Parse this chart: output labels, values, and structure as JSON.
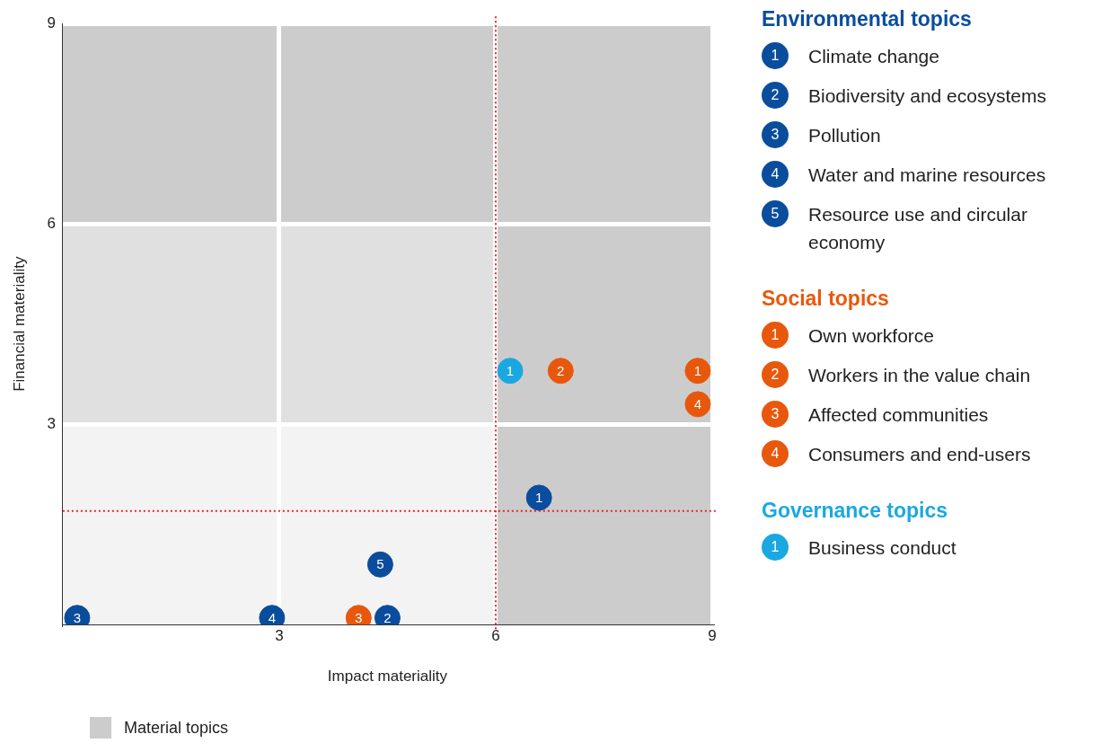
{
  "chart_data": {
    "type": "scatter",
    "xlabel": "Impact materiality",
    "ylabel": "Financial materiality",
    "xlim": [
      0,
      9
    ],
    "ylim": [
      0,
      9
    ],
    "xticks": [
      3,
      6,
      9
    ],
    "yticks": [
      3,
      6,
      9
    ],
    "grid": true,
    "marker": "circle",
    "legend": "right",
    "annotations": [
      "Environmental topics",
      "Social topics",
      "Governance topics",
      {
        "text": "1",
        "x": 6.6,
        "y": 1.9
      },
      {
        "text": "2",
        "x": 4.5,
        "y": 0.1
      },
      {
        "text": "3",
        "x": 0.2,
        "y": 0.1
      },
      {
        "text": "4",
        "x": 2.9,
        "y": 0.1
      },
      {
        "text": "5",
        "x": 4.4,
        "y": 0.9
      },
      {
        "text": "1",
        "x": 8.8,
        "y": 3.8
      },
      {
        "text": "2",
        "x": 6.9,
        "y": 3.8
      },
      {
        "text": "3",
        "x": 4.1,
        "y": 0.1
      },
      {
        "text": "4",
        "x": 8.8,
        "y": 3.3
      },
      {
        "text": "1",
        "x": 6.2,
        "y": 3.8
      }
    ],
    "bands": [
      {
        "axis": "y",
        "from": 0,
        "to": 3,
        "color": "#f3f3f3"
      },
      {
        "axis": "y",
        "from": 3,
        "to": 6,
        "color": "#e0e0e0"
      },
      {
        "axis": "y",
        "from": 6,
        "to": 9,
        "color": "#cccccc",
        "label": "Material topics"
      },
      {
        "axis": "x",
        "from": 6,
        "to": 9,
        "color": "#cccccc"
      }
    ],
    "ref_lines": [
      {
        "axis": "x",
        "value": 6,
        "color": "#e3262d",
        "line_style": "dotted"
      },
      {
        "axis": "y",
        "value": 1.7,
        "color": "#e3262d",
        "line_style": "dotted"
      }
    ],
    "series": [
      {
        "name": "Climate change",
        "color": "#0a4d9c",
        "x": [
          6.6
        ],
        "values": [
          1.9
        ]
      },
      {
        "name": "Biodiversity and ecosystems",
        "color": "#0a4d9c",
        "x": [
          4.5
        ],
        "values": [
          0.1
        ]
      },
      {
        "name": "Pollution",
        "color": "#0a4d9c",
        "x": [
          0.2
        ],
        "values": [
          0.1
        ]
      },
      {
        "name": "Water and marine resources",
        "color": "#0a4d9c",
        "x": [
          2.9
        ],
        "values": [
          0.1
        ]
      },
      {
        "name": "Resource use and circular economy",
        "color": "#0a4d9c",
        "x": [
          4.4
        ],
        "values": [
          0.9
        ]
      },
      {
        "name": "Own workforce",
        "color": "#e8580c",
        "x": [
          8.8
        ],
        "values": [
          3.8
        ]
      },
      {
        "name": "Workers in the value chain",
        "color": "#e8580c",
        "x": [
          6.9
        ],
        "values": [
          3.8
        ]
      },
      {
        "name": "Affected communities",
        "color": "#e8580c",
        "x": [
          4.1
        ],
        "values": [
          0.1
        ]
      },
      {
        "name": "Consumers and end-users",
        "color": "#e8580c",
        "x": [
          8.8
        ],
        "values": [
          3.3
        ]
      },
      {
        "name": "Business conduct",
        "color": "#1ba8e0",
        "x": [
          6.2
        ],
        "values": [
          3.8
        ]
      }
    ]
  }
}
